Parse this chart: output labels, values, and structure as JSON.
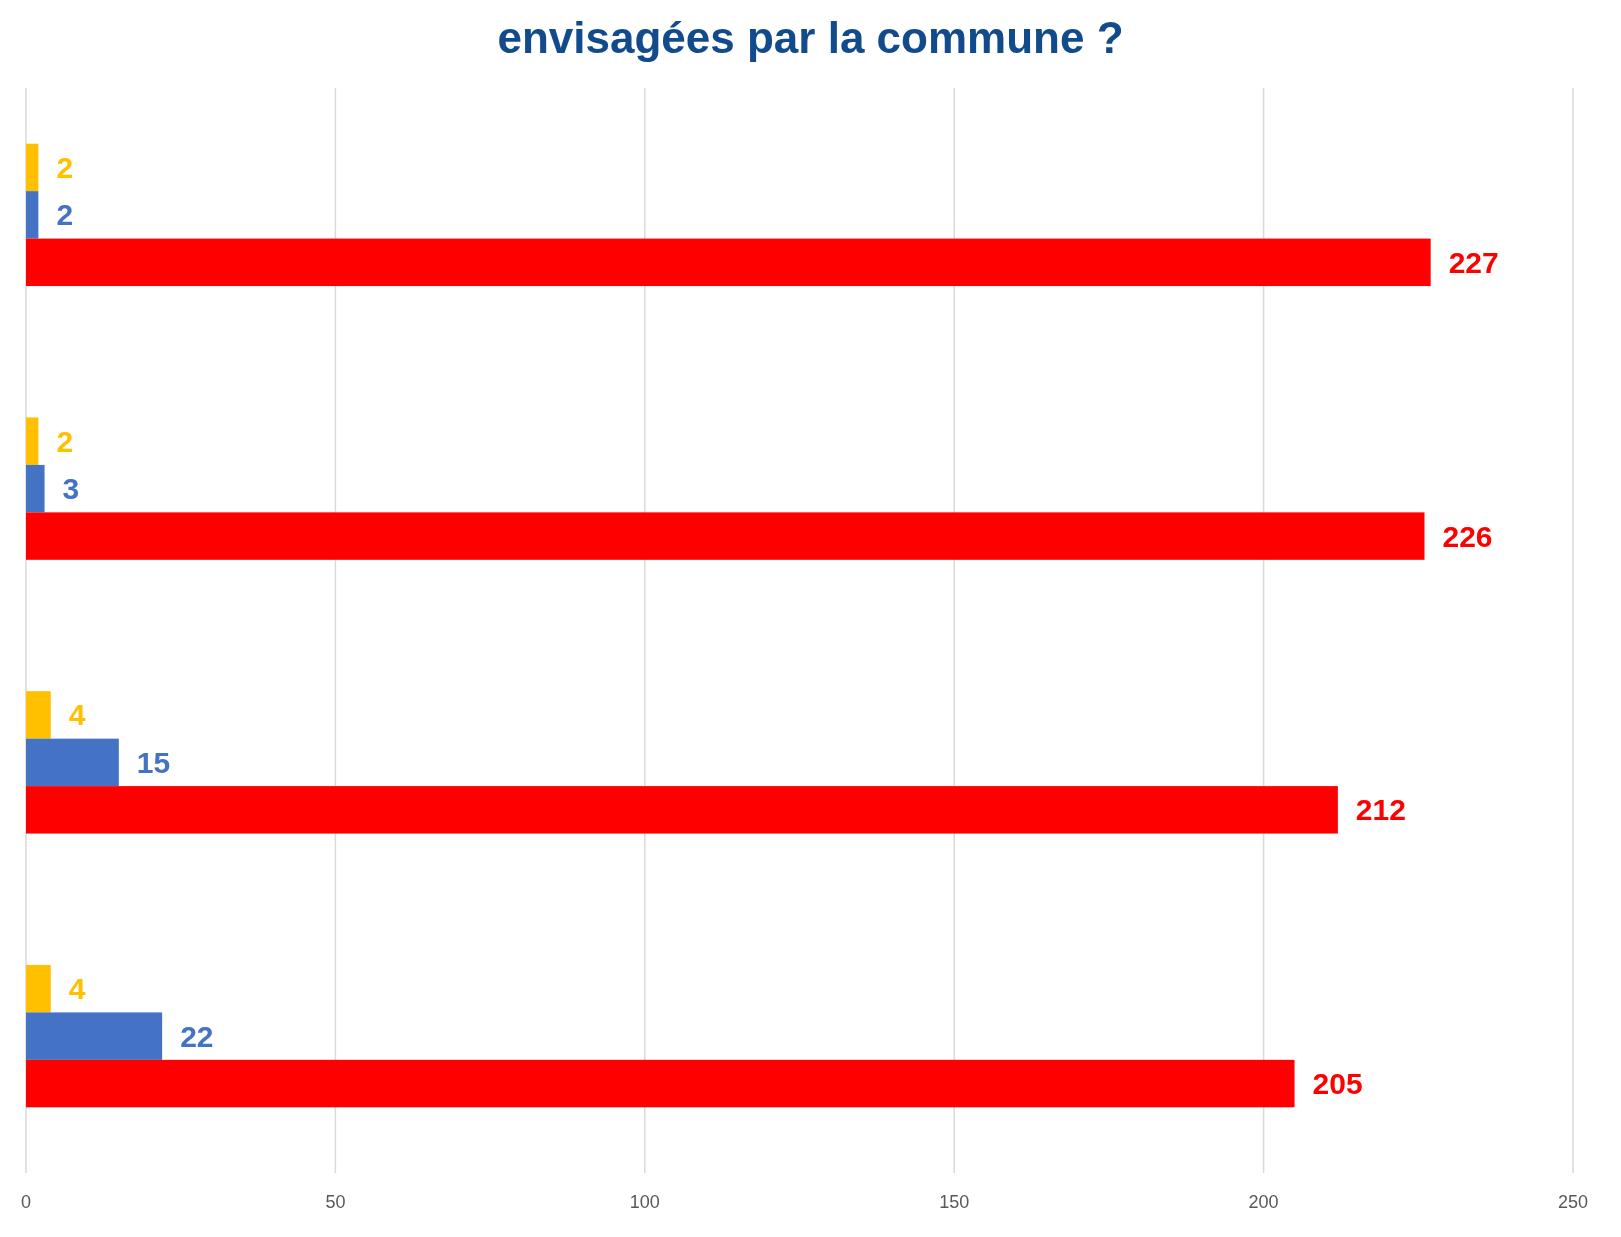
{
  "chart_data": {
    "type": "bar",
    "orientation": "horizontal",
    "title": "envisagées par la commune ?",
    "categories": [
      null,
      null,
      null,
      null
    ],
    "series": [
      {
        "color": "#ffc000",
        "values": [
          2,
          2,
          4,
          4
        ]
      },
      {
        "color": "#4472c4",
        "values": [
          2,
          3,
          15,
          22
        ]
      },
      {
        "color": "#ff0000",
        "values": [
          227,
          226,
          212,
          205
        ]
      }
    ],
    "xlim": [
      0,
      250
    ],
    "xticks": [
      0,
      50,
      100,
      150,
      200,
      250
    ],
    "grid": "x",
    "data_labels": true
  }
}
